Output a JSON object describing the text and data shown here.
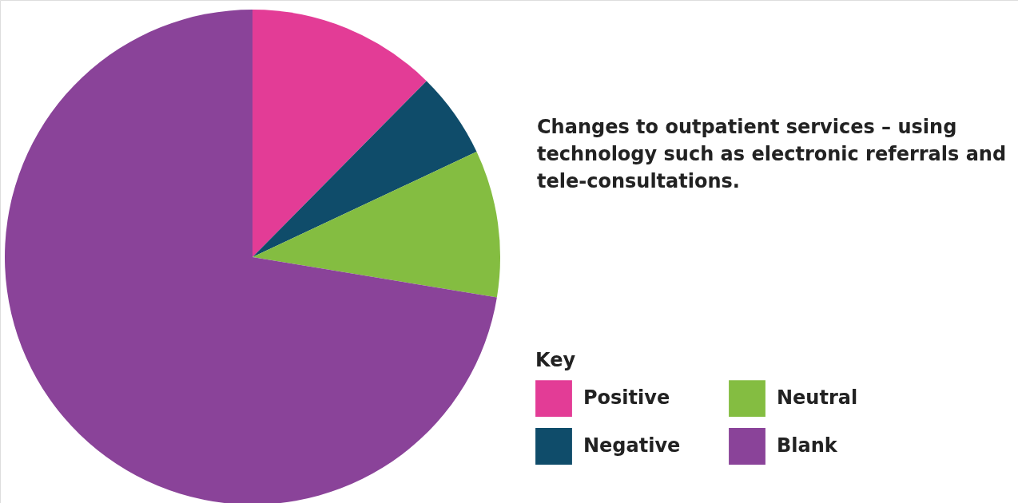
{
  "chart_data": {
    "type": "pie",
    "title": "Changes to outpatient services – using technology such as electronic referrals and tele-consultations.",
    "legend_title": "Key",
    "legend": "bottom right",
    "categories": [
      "Positive",
      "Negative",
      "Neutral",
      "Blank"
    ],
    "values": [
      12.4,
      5.6,
      9.6,
      72.4
    ],
    "colors": [
      "#e33c96",
      "#0f4c6a",
      "#84bd41",
      "#8a4399"
    ]
  }
}
